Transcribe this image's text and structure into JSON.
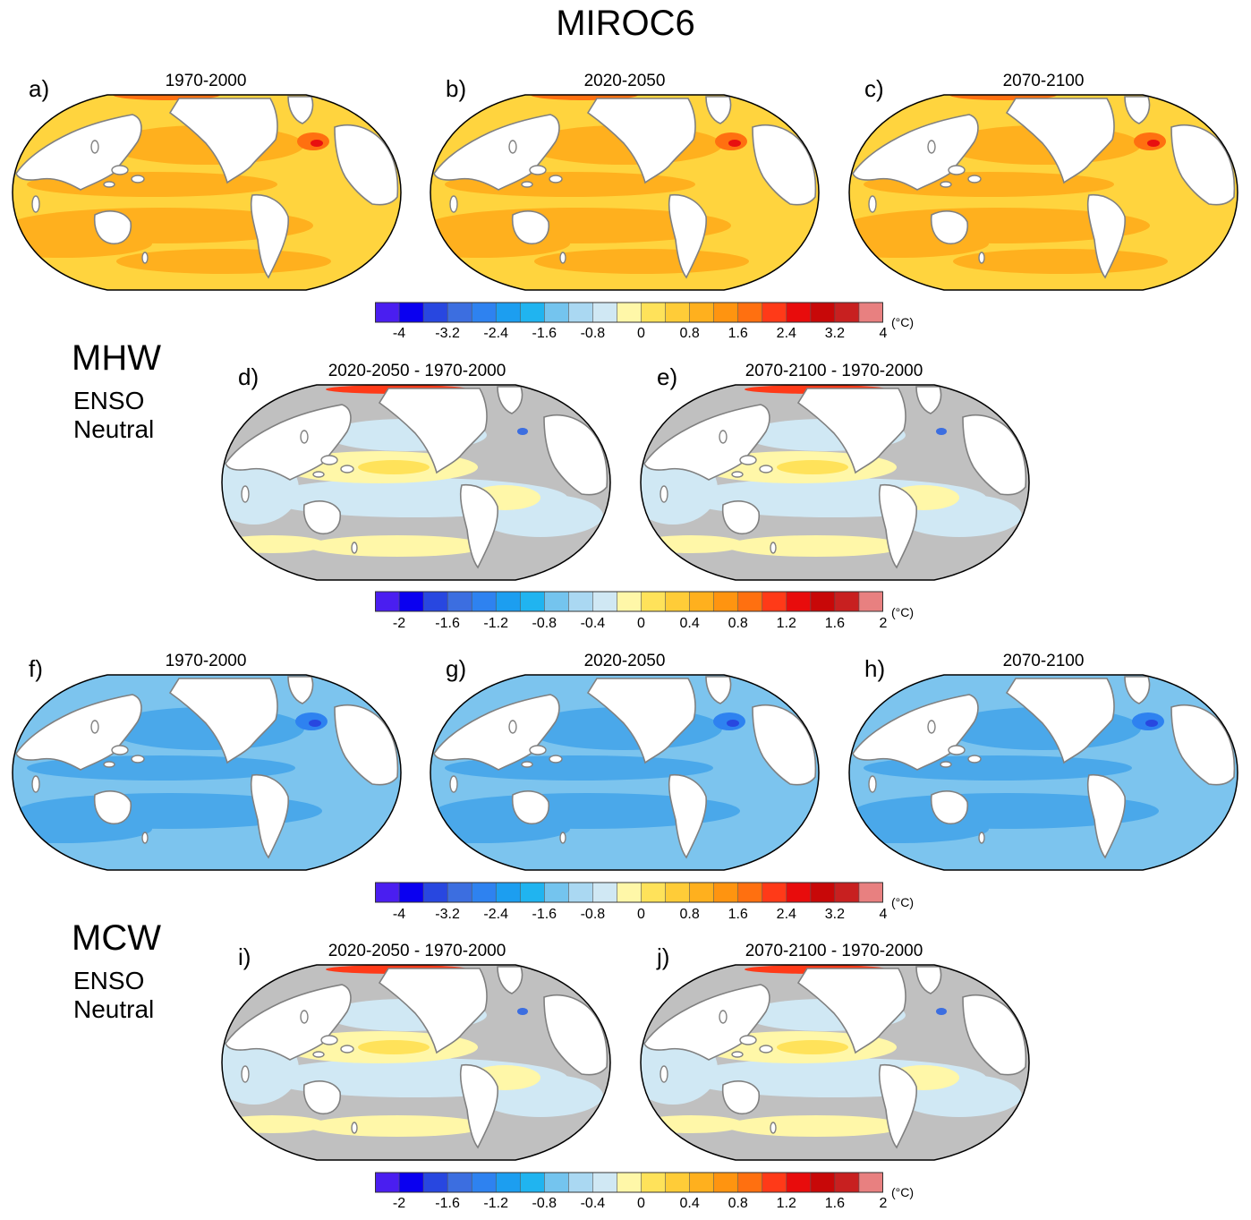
{
  "figure": {
    "title": "MIROC6",
    "sections": [
      {
        "label": "MHW",
        "sub1": "ENSO",
        "sub2": "Neutral"
      },
      {
        "label": "MCW",
        "sub1": "ENSO",
        "sub2": "Neutral"
      }
    ]
  },
  "panels": {
    "a": {
      "letter": "a)",
      "period": "1970-2000",
      "field": "mhw-clim"
    },
    "b": {
      "letter": "b)",
      "period": "2020-2050",
      "field": "mhw-clim"
    },
    "c": {
      "letter": "c)",
      "period": "2070-2100",
      "field": "mhw-clim"
    },
    "d": {
      "letter": "d)",
      "period": "2020-2050 - 1970-2000",
      "field": "diff"
    },
    "e": {
      "letter": "e)",
      "period": "2070-2100 - 1970-2000",
      "field": "diff"
    },
    "f": {
      "letter": "f)",
      "period": "1970-2000",
      "field": "mcw-clim"
    },
    "g": {
      "letter": "g)",
      "period": "2020-2050",
      "field": "mcw-clim"
    },
    "h": {
      "letter": "h)",
      "period": "2070-2100",
      "field": "mcw-clim"
    },
    "i": {
      "letter": "i)",
      "period": "2020-2050 - 1970-2000",
      "field": "diff"
    },
    "j": {
      "letter": "j)",
      "period": "2070-2100 - 1970-2000",
      "field": "diff"
    }
  },
  "colorbars": {
    "colors": [
      "#4a1ef0",
      "#0a00f0",
      "#2847e0",
      "#3c6ee0",
      "#2e82f0",
      "#1c9ef0",
      "#20b4f0",
      "#74c4ee",
      "#aad8f2",
      "#d0e8f4",
      "#fff7a8",
      "#ffe25a",
      "#ffcc38",
      "#ffb01e",
      "#ff9410",
      "#ff7010",
      "#ff3a18",
      "#e80c0c",
      "#c80808",
      "#c82020",
      "#e88080"
    ],
    "clim": {
      "ticks": [
        "-4",
        "-3.2",
        "-2.4",
        "-1.6",
        "-0.8",
        "0",
        "0.8",
        "1.6",
        "2.4",
        "3.2",
        "4"
      ],
      "unit": "(°C)"
    },
    "diff": {
      "ticks": [
        "-2",
        "-1.6",
        "-1.2",
        "-0.8",
        "-0.4",
        "0",
        "0.4",
        "0.8",
        "1.2",
        "1.6",
        "2"
      ],
      "unit": "(°C)"
    }
  },
  "map_colors": {
    "land": "#ffffff",
    "coast": "#808080",
    "mhw_base": "#ffd43e",
    "mhw_warm": "#ffb01e",
    "mhw_hot": "#ff7010",
    "mhw_peak": "#e81010",
    "mcw_base": "#7cc4ee",
    "mcw_cold": "#4aa8ea",
    "mcw_colder": "#2e82f0",
    "mcw_peak": "#2847e0",
    "diff_gray": "#c0c0c0",
    "diff_pos": "#fff7a8",
    "diff_pos2": "#ffe25a",
    "diff_neg": "#d0e8f4",
    "diff_hot": "#ff3a18",
    "diff_cold": "#3c6ee0"
  }
}
